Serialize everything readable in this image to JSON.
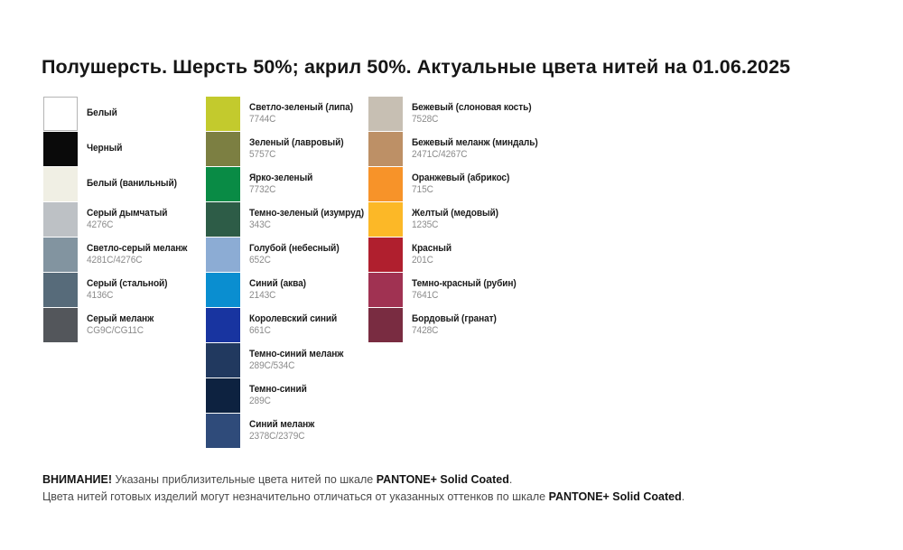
{
  "title": "Полушерсть. Шерсть 50%; акрил 50%. Актуальные цвета нитей на 01.06.2025",
  "columns": [
    {
      "items": [
        {
          "name": "Белый",
          "code": "",
          "color": "#ffffff",
          "border": "#b5b5b5"
        },
        {
          "name": "Черный",
          "code": "",
          "color": "#0a0a0a"
        },
        {
          "name": "Белый (ванильный)",
          "code": "",
          "color": "#f0efe4"
        },
        {
          "name": "Серый дымчатый",
          "code": "4276C",
          "color": "#bdc1c5"
        },
        {
          "name": "Светло-серый меланж",
          "code": "4281C/4276C",
          "color": "#8294a0"
        },
        {
          "name": "Серый (стальной)",
          "code": "4136C",
          "color": "#576b7a"
        },
        {
          "name": "Серый меланж",
          "code": "CG9C/CG11C",
          "color": "#53565b"
        }
      ]
    },
    {
      "items": [
        {
          "name": "Светло-зеленый (липа)",
          "code": "7744C",
          "color": "#c3ca2d"
        },
        {
          "name": "Зеленый (лавровый)",
          "code": "5757C",
          "color": "#7c7f42"
        },
        {
          "name": "Ярко-зеленый",
          "code": "7732C",
          "color": "#098b45"
        },
        {
          "name": "Темно-зеленый (изумруд)",
          "code": "343C",
          "color": "#2d5c47"
        },
        {
          "name": "Голубой (небесный)",
          "code": "652C",
          "color": "#8cacd4"
        },
        {
          "name": "Синий (аква)",
          "code": "2143C",
          "color": "#0a8ed0"
        },
        {
          "name": "Королевский синий",
          "code": "661C",
          "color": "#1834a0"
        },
        {
          "name": "Темно-синий меланж",
          "code": "289C/534C",
          "color": "#21395f"
        },
        {
          "name": "Темно-синий",
          "code": "289C",
          "color": "#0d2240"
        },
        {
          "name": "Синий меланж",
          "code": "2378C/2379C",
          "color": "#2f4b7a"
        }
      ]
    },
    {
      "items": [
        {
          "name": "Бежевый (слоновая кость)",
          "code": "7528C",
          "color": "#c7bfb3"
        },
        {
          "name": "Бежевый меланж (миндаль)",
          "code": "2471C/4267C",
          "color": "#bd9066"
        },
        {
          "name": "Оранжевый (абрикос)",
          "code": "715C",
          "color": "#f79329"
        },
        {
          "name": "Желтый (медовый)",
          "code": "1235C",
          "color": "#fcb827"
        },
        {
          "name": "Красный",
          "code": "201C",
          "color": "#b01f2e"
        },
        {
          "name": "Темно-красный (рубин)",
          "code": "7641C",
          "color": "#a03252"
        },
        {
          "name": "Бордовый (гранат)",
          "code": "7428C",
          "color": "#792c41"
        }
      ]
    }
  ],
  "footer": {
    "line1_bold1": "ВНИМАНИЕ!",
    "line1_text": " Указаны приблизительные цвета нитей по шкале ",
    "line1_bold2": "PANTONE+ Solid Coated",
    "line1_end": ".",
    "line2_text": "Цвета нитей готовых изделий могут незначительно отличаться от указанных оттенков по шкале ",
    "line2_bold": "PANTONE+ Solid Coated",
    "line2_end": "."
  }
}
